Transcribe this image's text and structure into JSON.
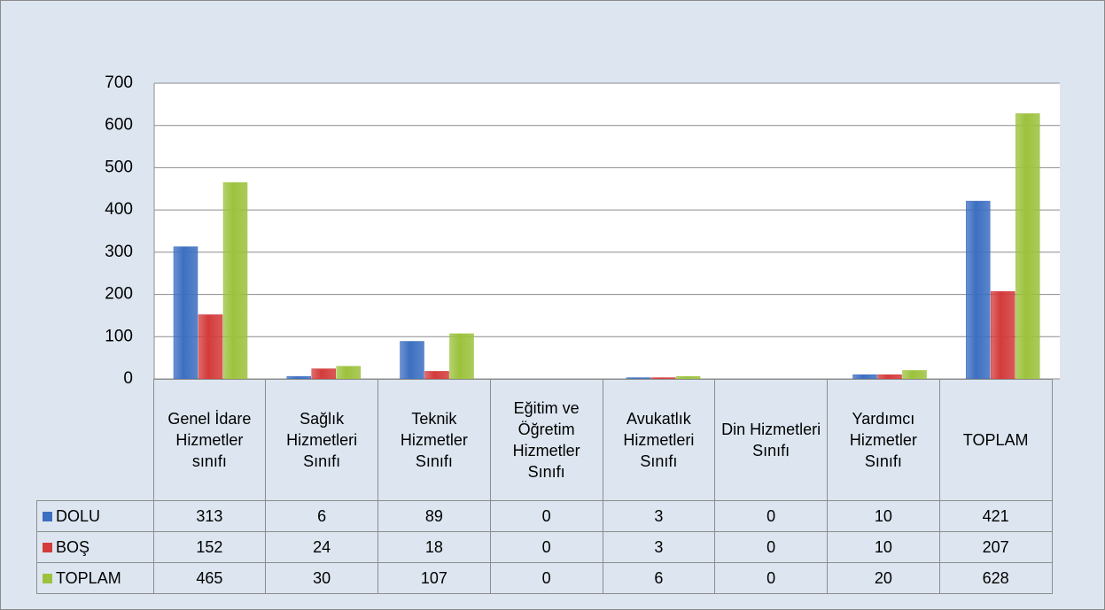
{
  "chart_data": {
    "type": "bar",
    "categories": [
      "Genel İdare Hizmetler sınıfı",
      "Sağlık Hizmetleri Sınıfı",
      "Teknik Hizmetler Sınıfı",
      "Eğitim ve Öğretim Hizmetler Sınıfı",
      "Avukatlık Hizmetleri Sınıfı",
      "Din Hizmetleri Sınıfı",
      "Yardımcı Hizmetler Sınıfı",
      "TOPLAM"
    ],
    "series": [
      {
        "name": "DOLU",
        "color": "#3d6fc1",
        "values": [
          313,
          6,
          89,
          0,
          3,
          0,
          10,
          421
        ]
      },
      {
        "name": "BOŞ",
        "color": "#d43b3b",
        "values": [
          152,
          24,
          18,
          0,
          3,
          0,
          10,
          207
        ]
      },
      {
        "name": "TOPLAM",
        "color": "#9cc23d",
        "values": [
          465,
          30,
          107,
          0,
          6,
          0,
          20,
          628
        ]
      }
    ],
    "ylim": [
      0,
      700
    ],
    "yticks": [
      0,
      100,
      200,
      300,
      400,
      500,
      600,
      700
    ],
    "grid": true
  }
}
